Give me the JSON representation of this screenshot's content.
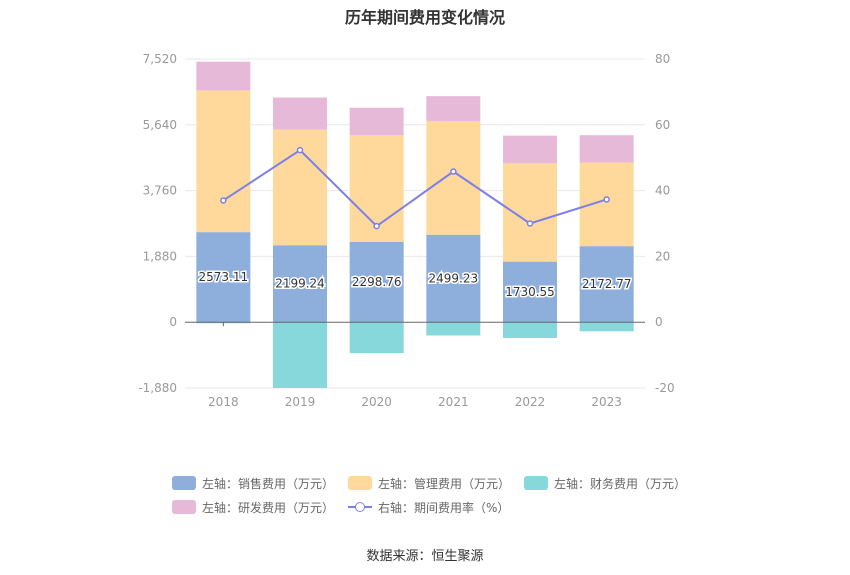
{
  "title": "历年期间费用变化情况",
  "source": "数据来源：恒生聚源",
  "colors": {
    "sales": "#8eaedc",
    "admin": "#ffd99c",
    "finance": "#86d8da",
    "rd": "#e7b9d9",
    "rate": "#7b7fe8",
    "axis_text": "#999999",
    "grid": "#e8e8e8"
  },
  "chart_data": {
    "type": "bar",
    "stacked": true,
    "categories": [
      "2018",
      "2019",
      "2020",
      "2021",
      "2022",
      "2023"
    ],
    "left_axis": {
      "min": -1880,
      "max": 7520,
      "ticks": [
        -1880,
        0,
        1880,
        3760,
        5640,
        7520
      ],
      "tick_labels": [
        "-1,880",
        "0",
        "1,880",
        "3,760",
        "5,640",
        "7,520"
      ]
    },
    "right_axis": {
      "min": -20,
      "max": 80,
      "ticks": [
        -20,
        0,
        20,
        40,
        60,
        80
      ],
      "tick_labels": [
        "-20",
        "0",
        "20",
        "40",
        "60",
        "80"
      ]
    },
    "grid": true,
    "legend_position": "bottom",
    "series": [
      {
        "name": "左轴：销售费用（万元）",
        "key": "sales",
        "axis": "left",
        "values": [
          2573.11,
          2199.24,
          2298.76,
          2499.23,
          1730.55,
          2172.77
        ],
        "labels": [
          "2573.11",
          "2199.24",
          "2298.76",
          "2499.23",
          "1730.55",
          "2172.77"
        ]
      },
      {
        "name": "左轴：管理费用（万元）",
        "key": "admin",
        "axis": "left",
        "values": [
          4050,
          3300,
          3050,
          3250,
          2810,
          2390
        ]
      },
      {
        "name": "左轴：财务费用（万元）",
        "key": "finance",
        "axis": "left",
        "values": [
          -30,
          -1880,
          -880,
          -380,
          -450,
          -260
        ]
      },
      {
        "name": "左轴：研发费用（万元）",
        "key": "rd",
        "axis": "left",
        "values": [
          820,
          920,
          780,
          710,
          790,
          780
        ]
      },
      {
        "name": "右轴：期间费用率（%）",
        "key": "rate",
        "axis": "right",
        "type": "line",
        "values": [
          37.0,
          52.3,
          29.2,
          45.8,
          30.0,
          37.3
        ]
      }
    ]
  }
}
